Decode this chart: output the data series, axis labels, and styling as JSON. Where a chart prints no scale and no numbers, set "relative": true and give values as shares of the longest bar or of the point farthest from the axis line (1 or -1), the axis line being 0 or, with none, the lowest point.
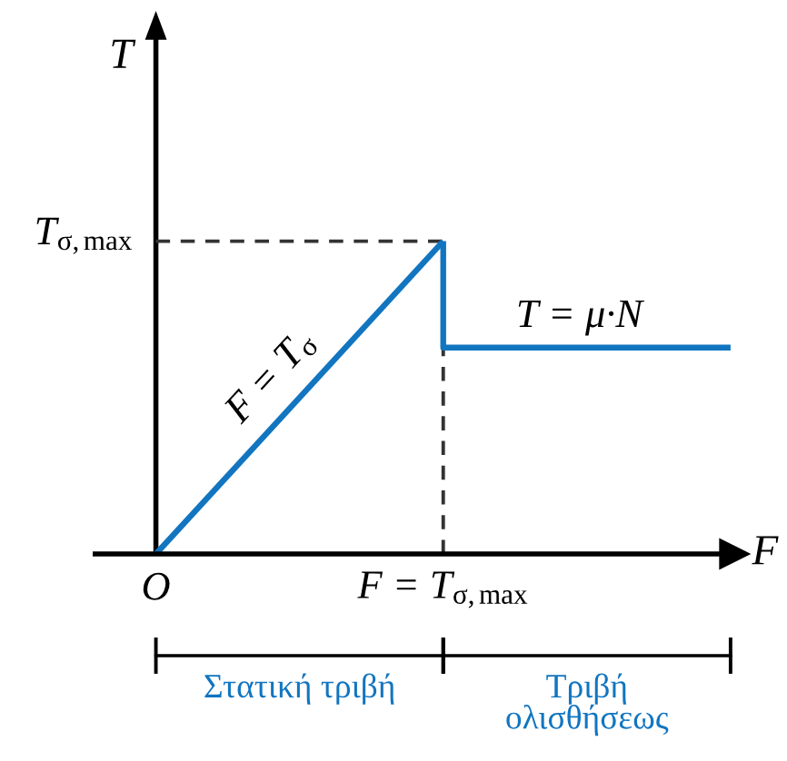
{
  "chart_data": {
    "type": "line",
    "relative": true,
    "xlabel": "F",
    "ylabel": "T",
    "categories": [
      "O",
      "F = T$_{σ,max}$",
      null
    ],
    "series": [
      {
        "name": "F = T$_{σ}$",
        "color": "#1275c0",
        "values": [
          0,
          1,
          null
        ]
      },
      {
        "name": "T = μ·N",
        "type": "step",
        "color": "#1275c0",
        "values": [
          null,
          1,
          0.66
        ]
      }
    ],
    "ref_lines": [
      {
        "axis": "y",
        "value": 1,
        "label": "T$_{σ,max}$",
        "color": "#333333",
        "line_style": "dashed"
      },
      {
        "axis": "x",
        "value": "F = T$_{σ,max}$",
        "color": "#333333",
        "line_style": "dashed"
      }
    ],
    "annotations": [
      "Στατική τριβή",
      "Τριβή\nολισθήσεως"
    ],
    "legend": false,
    "grid": false
  }
}
